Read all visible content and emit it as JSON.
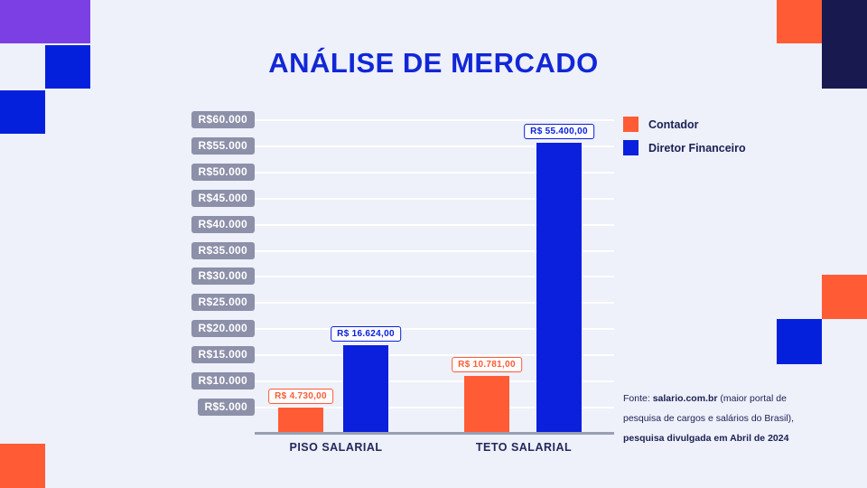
{
  "title": "ANÁLISE DE MERCADO",
  "palette": {
    "background": "#EEF0FA",
    "title_blue": "#1127D6",
    "bar_orange": "#FF5C35",
    "bar_blue": "#0A20DC",
    "decor_purple": "#7B3FE4",
    "decor_navy": "#181A4F",
    "axis_badge_grey": "#8D90A9",
    "baseline_grey": "#9AA0B4",
    "text_navy": "#1B2153"
  },
  "chart_data": {
    "type": "bar",
    "title": "ANÁLISE DE MERCADO",
    "categories": [
      "PISO SALARIAL",
      "TETO SALARIAL"
    ],
    "series": [
      {
        "name": "Contador",
        "color": "#FF5C35",
        "values": [
          4730,
          10781
        ],
        "value_labels": [
          "R$ 4.730,00",
          "R$ 10.781,00"
        ]
      },
      {
        "name": "Diretor Financeiro",
        "color": "#0A20DC",
        "values": [
          16624,
          55400
        ],
        "value_labels": [
          "R$ 16.624,00",
          "R$ 55.400,00"
        ]
      }
    ],
    "y_tick_labels": [
      "R$60.000",
      "R$55.000",
      "R$50.000",
      "R$45.000",
      "R$40.000",
      "R$35.000",
      "R$30.000",
      "R$25.000",
      "R$20.000",
      "R$15.000",
      "R$10.000",
      "R$5.000"
    ],
    "y_tick_values": [
      60000,
      55000,
      50000,
      45000,
      40000,
      35000,
      30000,
      25000,
      20000,
      15000,
      10000,
      5000
    ],
    "xlabel": "",
    "ylabel": "",
    "ylim": [
      0,
      60000
    ],
    "grid": true,
    "legend_position": "right"
  },
  "footer": {
    "lines": [
      {
        "parts": [
          {
            "text": "Fonte: ",
            "bold": false
          },
          {
            "text": "salario.com.br",
            "bold": true
          },
          {
            "text": " (maior portal de",
            "bold": false
          }
        ]
      },
      {
        "parts": [
          {
            "text": "pesquisa de cargos e salários do Brasil),",
            "bold": false
          }
        ]
      },
      {
        "parts": [
          {
            "text": "pesquisa divulgada em Abril de 2024",
            "bold": true
          }
        ]
      }
    ]
  }
}
